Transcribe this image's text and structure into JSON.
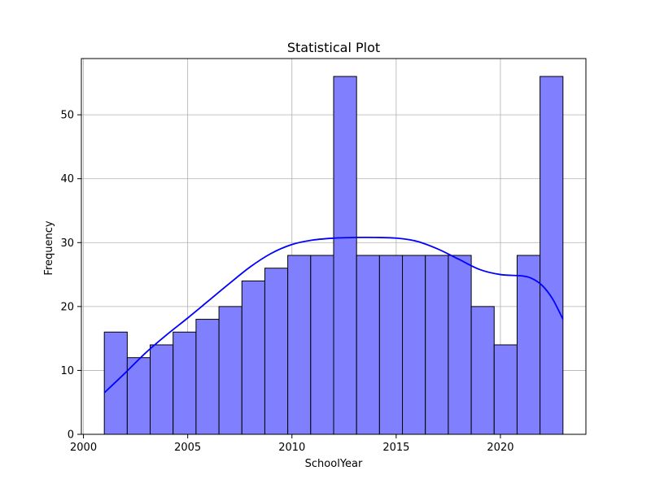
{
  "chart_data": {
    "type": "bar",
    "title": "Statistical Plot",
    "xlabel": "SchoolYear",
    "ylabel": "Frequency",
    "xlim": [
      1999.9,
      2024.1
    ],
    "ylim": [
      0,
      58.8
    ],
    "xticks": [
      2000,
      2005,
      2010,
      2015,
      2020
    ],
    "yticks": [
      0,
      10,
      20,
      30,
      40,
      50
    ],
    "grid": true,
    "bar_color": "#8080ff",
    "bar_edge_color": "#000000",
    "kde_color": "#0000ff",
    "bins": [
      {
        "start": 2001.0,
        "end": 2002.1,
        "value": 16
      },
      {
        "start": 2002.1,
        "end": 2003.2,
        "value": 12
      },
      {
        "start": 2003.2,
        "end": 2004.3,
        "value": 14
      },
      {
        "start": 2004.3,
        "end": 2005.4,
        "value": 16
      },
      {
        "start": 2005.4,
        "end": 2006.5,
        "value": 18
      },
      {
        "start": 2006.5,
        "end": 2007.6,
        "value": 20
      },
      {
        "start": 2007.6,
        "end": 2008.7,
        "value": 24
      },
      {
        "start": 2008.7,
        "end": 2009.8,
        "value": 26
      },
      {
        "start": 2009.8,
        "end": 2010.9,
        "value": 28
      },
      {
        "start": 2010.9,
        "end": 2012.0,
        "value": 28
      },
      {
        "start": 2012.0,
        "end": 2013.1,
        "value": 56
      },
      {
        "start": 2013.1,
        "end": 2014.2,
        "value": 28
      },
      {
        "start": 2014.2,
        "end": 2015.3,
        "value": 28
      },
      {
        "start": 2015.3,
        "end": 2016.4,
        "value": 28
      },
      {
        "start": 2016.4,
        "end": 2017.5,
        "value": 28
      },
      {
        "start": 2017.5,
        "end": 2018.6,
        "value": 28
      },
      {
        "start": 2018.6,
        "end": 2019.7,
        "value": 20
      },
      {
        "start": 2019.7,
        "end": 2020.8,
        "value": 14
      },
      {
        "start": 2020.8,
        "end": 2021.9,
        "value": 28
      },
      {
        "start": 2021.9,
        "end": 2023.0,
        "value": 56
      }
    ],
    "kde": [
      [
        2001.0,
        6.5
      ],
      [
        2002.0,
        9.6
      ],
      [
        2003.0,
        12.8
      ],
      [
        2004.0,
        15.6
      ],
      [
        2005.0,
        18.2
      ],
      [
        2006.0,
        20.9
      ],
      [
        2007.0,
        23.6
      ],
      [
        2008.0,
        26.2
      ],
      [
        2009.0,
        28.3
      ],
      [
        2010.0,
        29.7
      ],
      [
        2011.0,
        30.4
      ],
      [
        2012.0,
        30.7
      ],
      [
        2013.0,
        30.8
      ],
      [
        2014.0,
        30.8
      ],
      [
        2015.0,
        30.7
      ],
      [
        2016.0,
        30.2
      ],
      [
        2017.0,
        29.0
      ],
      [
        2018.0,
        27.4
      ],
      [
        2019.0,
        25.8
      ],
      [
        2020.0,
        25.0
      ],
      [
        2021.0,
        24.8
      ],
      [
        2021.5,
        24.4
      ],
      [
        2022.0,
        23.3
      ],
      [
        2022.5,
        21.2
      ],
      [
        2023.0,
        18.0
      ]
    ]
  }
}
